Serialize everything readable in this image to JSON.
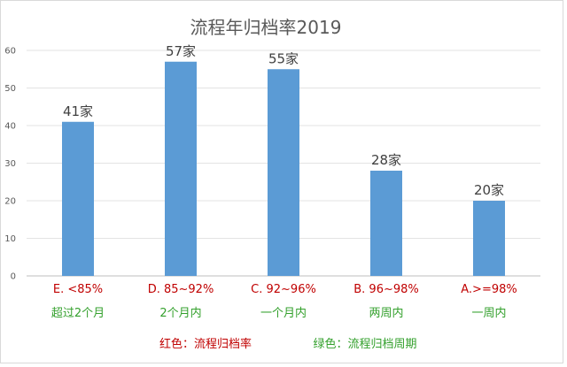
{
  "chart_data": {
    "type": "bar",
    "title": "流程年归档率2019",
    "categories": [
      "E. <85%",
      "D. 85~92%",
      "C. 92~96%",
      "B. 96~98%",
      "A.>=98%"
    ],
    "sub_categories": [
      "超过2个月",
      "2个月内",
      "一个月内",
      "两周内",
      "一周内"
    ],
    "values": [
      41,
      57,
      55,
      28,
      20
    ],
    "data_labels": [
      "41家",
      "57家",
      "55家",
      "28家",
      "20家"
    ],
    "ylim": [
      0,
      60
    ],
    "yticks": [
      0,
      10,
      20,
      30,
      40,
      50,
      60
    ],
    "grid": true,
    "bar_color": "#5b9bd5"
  },
  "legend": {
    "red_text": "红色：流程归档率",
    "green_text": "绿色：流程归档周期",
    "red_color": "#c00000",
    "green_color": "#33a02c"
  }
}
